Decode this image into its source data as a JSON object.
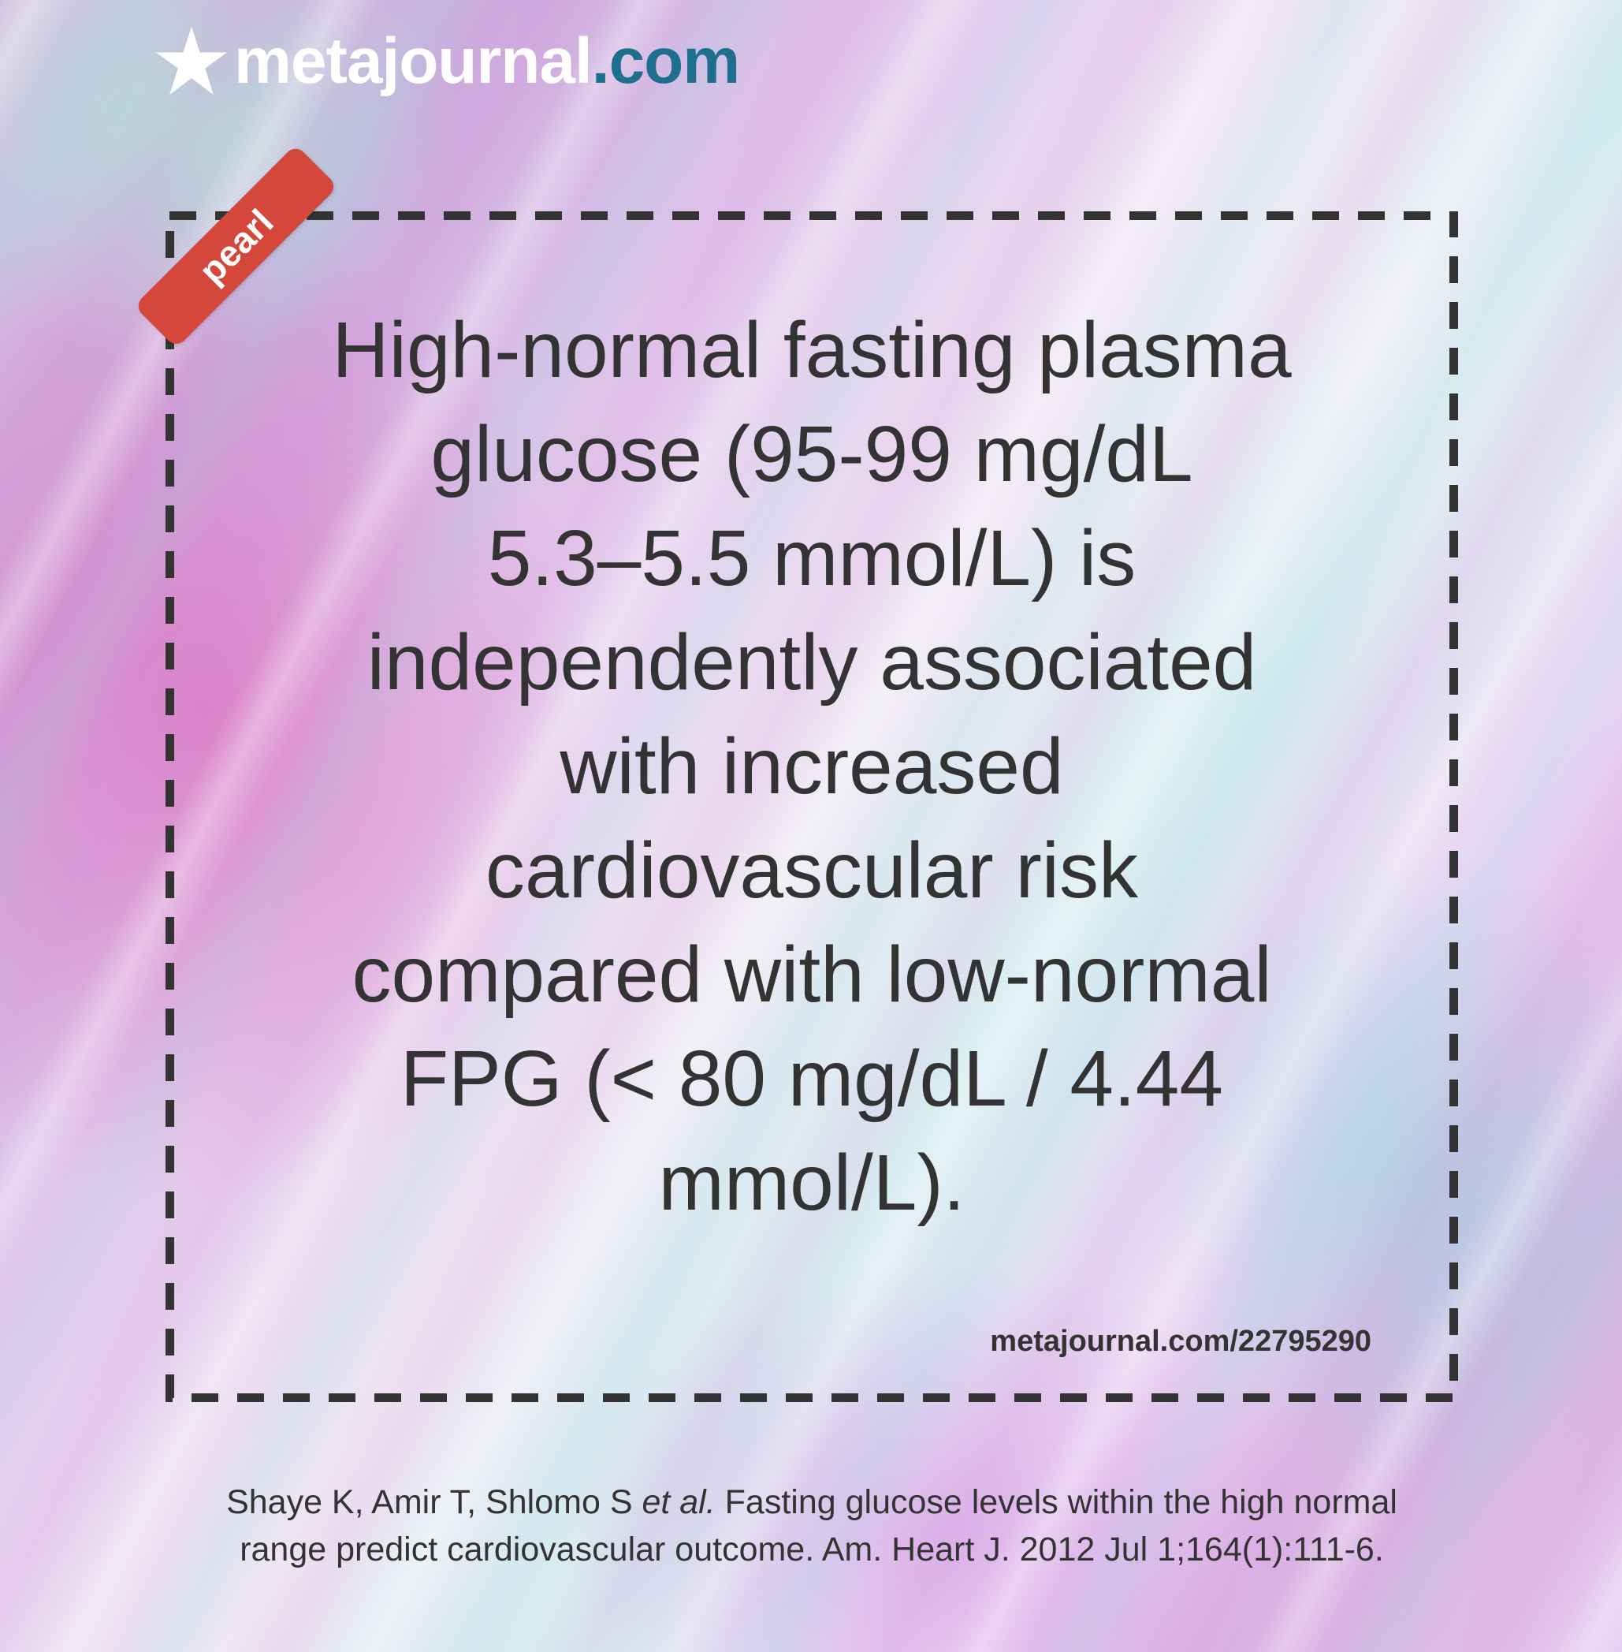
{
  "brand": {
    "name": "metajournal",
    "tld": ".com",
    "tld_color": "#1e6f8e",
    "icon": "star-icon"
  },
  "badge": {
    "label": "pearl",
    "color": "#d6473b"
  },
  "quote": {
    "lines": [
      "High-normal fasting plasma",
      "glucose (95-99 mg/dL",
      "5.3–5.5 mmol/L) is",
      "independently associated",
      "with increased",
      "cardiovascular risk",
      "compared with low-normal",
      "FPG (< 80 mg/dL / 4.44",
      "mmol/L)."
    ]
  },
  "link": {
    "text": "metajournal.com/22795290"
  },
  "citation": {
    "authors": "Shaye K, Amir T, Shlomo S",
    "et_al": "et al.",
    "title_part1": "Fasting glucose levels within the high normal",
    "line2": "range predict cardiovascular outcome. Am. Heart J. 2012 Jul 1;164(1):111-6."
  }
}
